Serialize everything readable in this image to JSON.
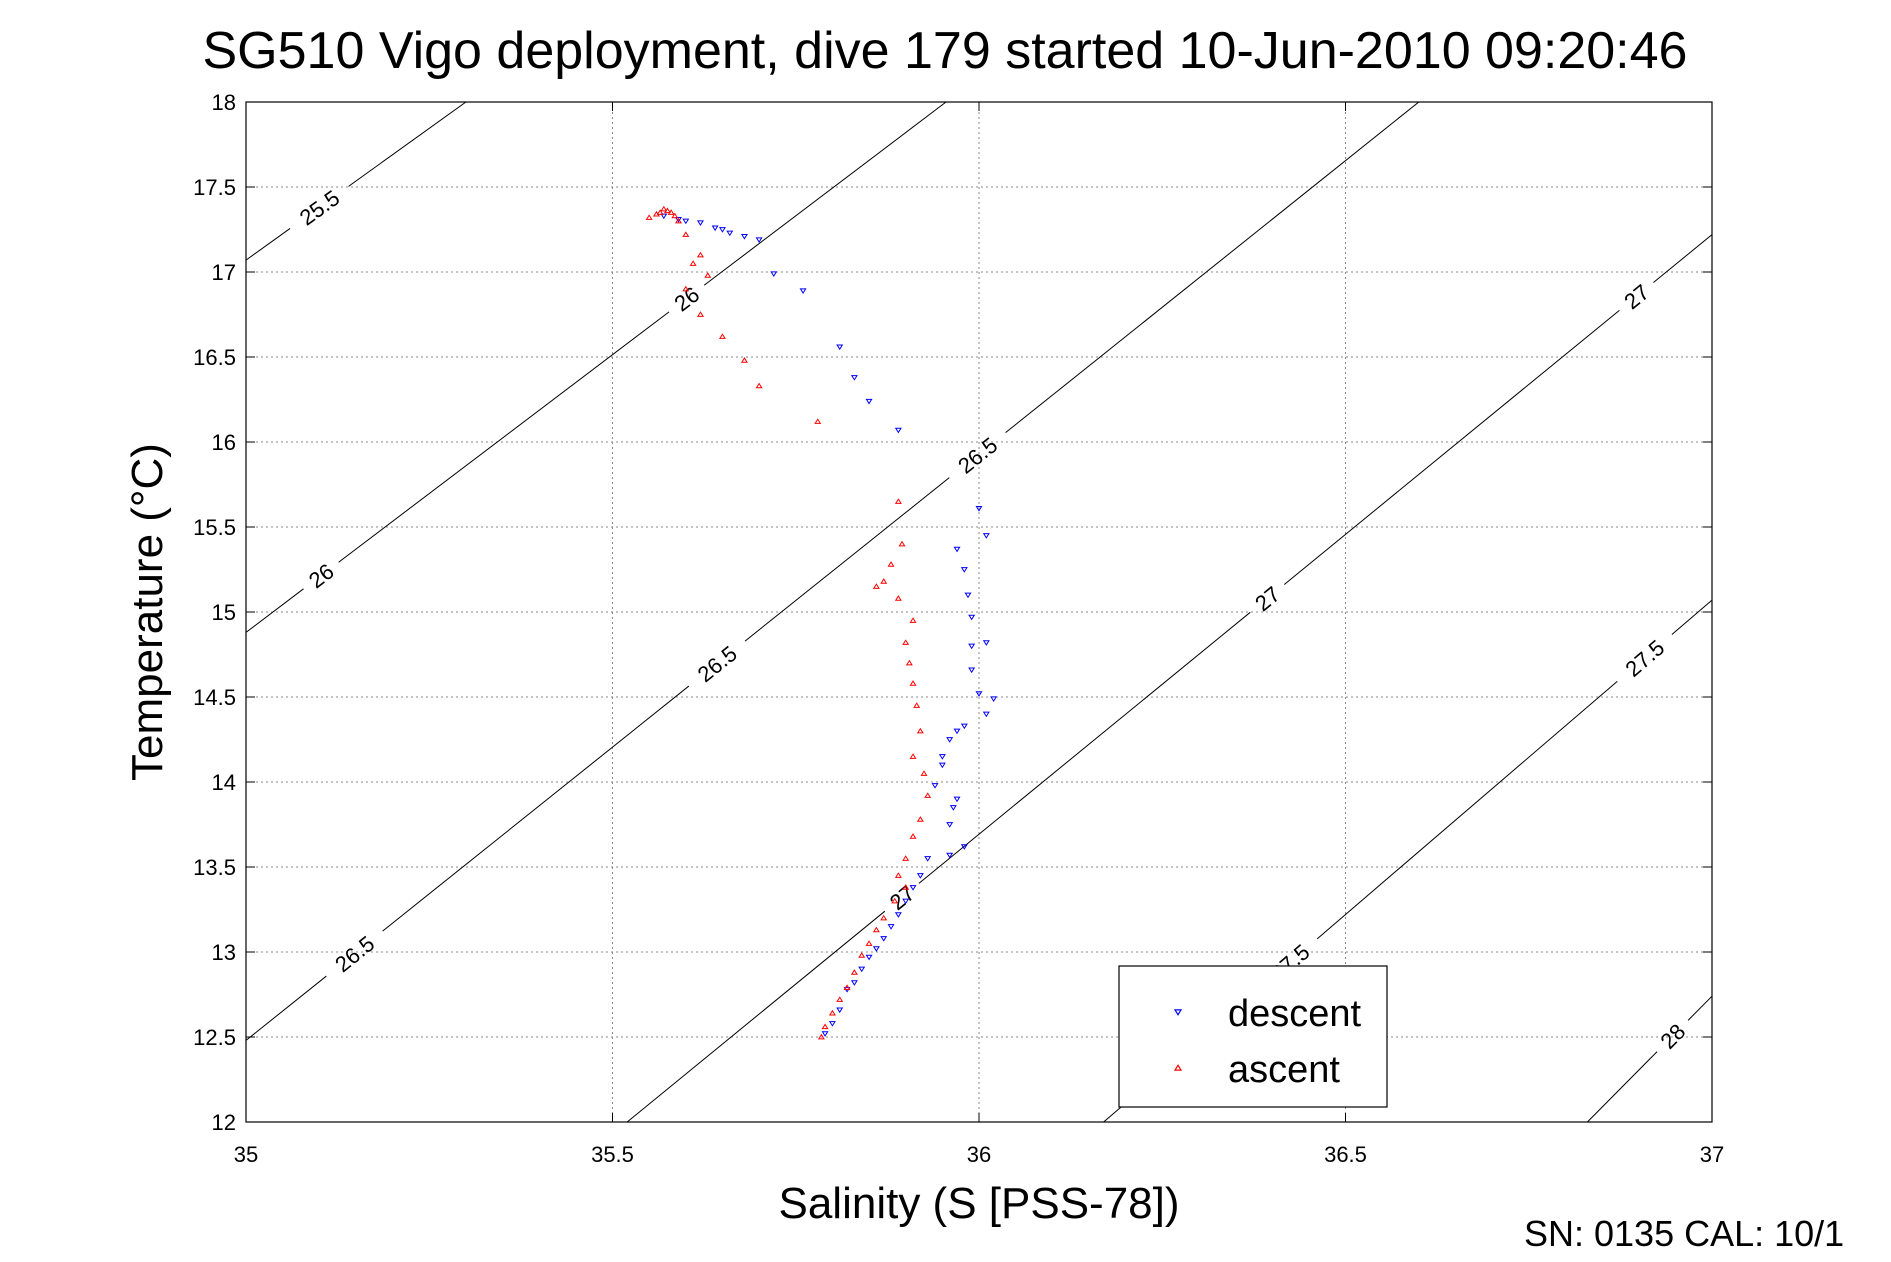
{
  "chart_data": {
    "type": "scatter",
    "title": "SG510 Vigo deployment, dive 179 started 10-Jun-2010 09:20:46",
    "xlabel": "Salinity (S [PSS-78])",
    "ylabel": "Temperature (°C)",
    "xlim": [
      35,
      37
    ],
    "ylim": [
      12,
      18
    ],
    "xticks": [
      35,
      35.5,
      36,
      36.5,
      37
    ],
    "yticks": [
      12,
      12.5,
      13,
      13.5,
      14,
      14.5,
      15,
      15.5,
      16,
      16.5,
      17,
      17.5,
      18
    ],
    "xtick_labels": [
      "35",
      "35.5",
      "36",
      "36.5",
      "37"
    ],
    "ytick_labels": [
      "12",
      "12.5",
      "13",
      "13.5",
      "14",
      "14.5",
      "15",
      "15.5",
      "16",
      "16.5",
      "17",
      "17.5",
      "18"
    ],
    "grid": true,
    "legend_position": "bottom-right",
    "density_contours": [
      {
        "sigma": "25.5",
        "line": [
          [
            35.0,
            17.07
          ],
          [
            35.3,
            18.0
          ]
        ],
        "labels": [
          {
            "text": "25.5",
            "x": 35.1,
            "y": 17.38
          }
        ]
      },
      {
        "sigma": "26",
        "line": [
          [
            35.0,
            14.88
          ],
          [
            35.955,
            18.0
          ]
        ],
        "labels": [
          {
            "text": "26",
            "x": 35.6,
            "y": 16.85
          },
          {
            "text": "26",
            "x": 35.105,
            "y": 15.2
          }
        ]
      },
      {
        "sigma": "26.5",
        "line": [
          [
            35.0,
            12.48
          ],
          [
            36.6,
            18.0
          ]
        ],
        "labels": [
          {
            "text": "26.5",
            "x": 35.9,
            "y": 16.45
          },
          {
            "text": "26.5",
            "x": 35.64,
            "y": 14.71
          },
          {
            "text": "26.5",
            "x": 35.15,
            "y": 12.98
          }
        ]
      },
      {
        "sigma": "27",
        "line": [
          [
            35.52,
            12.0
          ],
          [
            37.0,
            17.22
          ]
        ],
        "labels": [
          {
            "text": "27",
            "x": 36.9,
            "y": 16.84
          },
          {
            "text": "27",
            "x": 36.38,
            "y": 15.15
          },
          {
            "text": "27",
            "x": 35.88,
            "y": 13.4
          }
        ]
      },
      {
        "sigma": "27.5",
        "line": [
          [
            36.17,
            12.0
          ],
          [
            37.0,
            15.07
          ]
        ],
        "labels": [
          {
            "text": "27.5",
            "x": 36.91,
            "y": 14.72
          },
          {
            "text": "27.5",
            "x": 36.42,
            "y": 12.96
          }
        ]
      },
      {
        "sigma": "28",
        "line": [
          [
            36.83,
            12.0
          ],
          [
            37.0,
            12.74
          ]
        ],
        "labels": [
          {
            "text": "28",
            "x": 36.95,
            "y": 12.49
          }
        ]
      }
    ],
    "series": [
      {
        "name": "descent",
        "color": "#0000ff",
        "marker": "down-triangle",
        "x": [
          35.57,
          35.59,
          35.6,
          35.62,
          35.64,
          35.65,
          35.66,
          35.68,
          35.7,
          35.72,
          35.76,
          35.81,
          35.83,
          35.85,
          35.89,
          36.0,
          36.01,
          35.97,
          35.98,
          35.985,
          35.99,
          35.99,
          36.01,
          35.99,
          36.0,
          36.02,
          36.01,
          35.98,
          35.97,
          35.96,
          35.95,
          35.95,
          35.94,
          35.97,
          35.965,
          35.96,
          35.93,
          35.96,
          35.98,
          35.92,
          35.91,
          35.9,
          35.89,
          35.88,
          35.87,
          35.86,
          35.85,
          35.84,
          35.83,
          35.82,
          35.81,
          35.8,
          35.79
        ],
        "y": [
          17.33,
          17.31,
          17.3,
          17.29,
          17.26,
          17.25,
          17.23,
          17.21,
          17.19,
          16.99,
          16.89,
          16.56,
          16.38,
          16.24,
          16.07,
          15.61,
          15.45,
          15.37,
          15.25,
          15.1,
          14.97,
          14.8,
          14.82,
          14.66,
          14.52,
          14.49,
          14.4,
          14.33,
          14.3,
          14.25,
          14.15,
          14.1,
          13.98,
          13.9,
          13.85,
          13.75,
          13.55,
          13.57,
          13.62,
          13.45,
          13.38,
          13.3,
          13.22,
          13.15,
          13.08,
          13.02,
          12.97,
          12.9,
          12.82,
          12.78,
          12.66,
          12.58,
          12.52
        ]
      },
      {
        "name": "ascent",
        "color": "#ff0000",
        "marker": "up-triangle",
        "x": [
          35.55,
          35.56,
          35.565,
          35.57,
          35.575,
          35.58,
          35.585,
          35.59,
          35.6,
          35.62,
          35.61,
          35.63,
          35.6,
          35.62,
          35.65,
          35.68,
          35.7,
          35.78,
          35.89,
          35.895,
          35.88,
          35.87,
          35.86,
          35.89,
          35.91,
          35.9,
          35.905,
          35.91,
          35.915,
          35.92,
          35.91,
          35.925,
          35.93,
          35.92,
          35.91,
          35.9,
          35.89,
          35.9,
          35.885,
          35.87,
          35.86,
          35.85,
          35.84,
          35.83,
          35.82,
          35.81,
          35.8,
          35.79,
          35.785
        ],
        "y": [
          17.32,
          17.34,
          17.35,
          17.37,
          17.36,
          17.35,
          17.33,
          17.3,
          17.22,
          17.1,
          17.05,
          16.98,
          16.9,
          16.75,
          16.62,
          16.48,
          16.33,
          16.12,
          15.65,
          15.4,
          15.28,
          15.18,
          15.15,
          15.08,
          14.95,
          14.82,
          14.7,
          14.58,
          14.45,
          14.3,
          14.15,
          14.05,
          13.92,
          13.78,
          13.68,
          13.55,
          13.45,
          13.38,
          13.3,
          13.2,
          13.13,
          13.05,
          12.98,
          12.88,
          12.79,
          12.72,
          12.64,
          12.56,
          12.5
        ]
      }
    ],
    "legend": [
      {
        "label": "descent",
        "marker": "down-triangle",
        "color": "#0000ff"
      },
      {
        "label": "ascent",
        "marker": "up-triangle",
        "color": "#ff0000"
      }
    ]
  },
  "footer": {
    "serial_calibration": "SN: 0135  CAL: 10/1"
  }
}
